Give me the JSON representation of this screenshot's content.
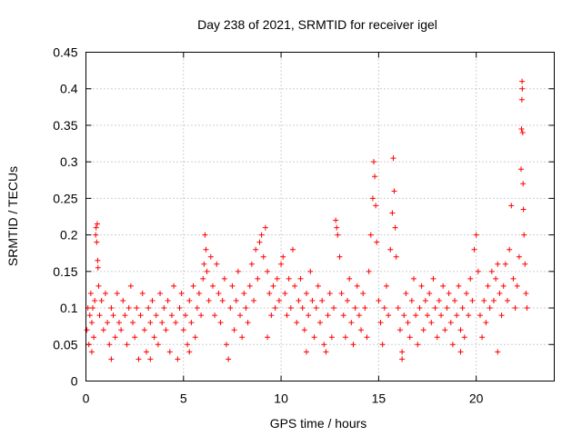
{
  "chart_data": {
    "type": "scatter",
    "title": "Day 238 of 2021, SRMTID for receiver igel",
    "xlabel": "GPS time / hours",
    "ylabel": "SRMTID / TECUs",
    "xlim": [
      0,
      24
    ],
    "ylim": [
      0,
      0.45
    ],
    "x_ticks": [
      0,
      5,
      10,
      15,
      20
    ],
    "x_tick_labels": [
      "0",
      "5",
      "10",
      "15",
      "20"
    ],
    "y_ticks": [
      0,
      0.05,
      0.1,
      0.15,
      0.2,
      0.25,
      0.3,
      0.35,
      0.4,
      0.45
    ],
    "y_tick_labels": [
      "0",
      "0.05",
      "0.1",
      "0.15",
      "0.2",
      "0.25",
      "0.3",
      "0.35",
      "0.4",
      "0.45"
    ],
    "grid": true,
    "marker": "+",
    "color": "#ff0000",
    "series": [
      {
        "name": "SRMTID",
        "points": [
          [
            0.05,
            0.07
          ],
          [
            0.1,
            0.1
          ],
          [
            0.15,
            0.05
          ],
          [
            0.2,
            0.09
          ],
          [
            0.25,
            0.12
          ],
          [
            0.3,
            0.08
          ],
          [
            0.35,
            0.1
          ],
          [
            0.4,
            0.06
          ],
          [
            0.45,
            0.11
          ],
          [
            0.5,
            0.2
          ],
          [
            0.52,
            0.21
          ],
          [
            0.55,
            0.19
          ],
          [
            0.58,
            0.215
          ],
          [
            0.6,
            0.165
          ],
          [
            0.62,
            0.155
          ],
          [
            0.65,
            0.13
          ],
          [
            0.7,
            0.09
          ],
          [
            0.8,
            0.11
          ],
          [
            0.9,
            0.07
          ],
          [
            1.0,
            0.12
          ],
          [
            1.1,
            0.08
          ],
          [
            1.2,
            0.05
          ],
          [
            1.3,
            0.1
          ],
          [
            1.4,
            0.09
          ],
          [
            1.5,
            0.06
          ],
          [
            1.6,
            0.12
          ],
          [
            1.7,
            0.08
          ],
          [
            1.8,
            0.07
          ],
          [
            1.9,
            0.11
          ],
          [
            2.0,
            0.09
          ],
          [
            2.1,
            0.05
          ],
          [
            2.2,
            0.1
          ],
          [
            2.3,
            0.13
          ],
          [
            2.4,
            0.08
          ],
          [
            2.5,
            0.06
          ],
          [
            2.6,
            0.1
          ],
          [
            2.7,
            0.03
          ],
          [
            2.8,
            0.09
          ],
          [
            2.9,
            0.12
          ],
          [
            3.0,
            0.07
          ],
          [
            3.1,
            0.04
          ],
          [
            3.2,
            0.1
          ],
          [
            3.3,
            0.08
          ],
          [
            3.4,
            0.11
          ],
          [
            3.5,
            0.06
          ],
          [
            3.6,
            0.09
          ],
          [
            3.7,
            0.05
          ],
          [
            3.8,
            0.12
          ],
          [
            3.9,
            0.08
          ],
          [
            4.0,
            0.1
          ],
          [
            4.1,
            0.07
          ],
          [
            4.2,
            0.11
          ],
          [
            4.3,
            0.04
          ],
          [
            4.4,
            0.09
          ],
          [
            4.5,
            0.13
          ],
          [
            4.6,
            0.08
          ],
          [
            4.7,
            0.03
          ],
          [
            4.8,
            0.1
          ],
          [
            4.9,
            0.12
          ],
          [
            5.0,
            0.07
          ],
          [
            5.1,
            0.09
          ],
          [
            5.2,
            0.05
          ],
          [
            5.3,
            0.11
          ],
          [
            5.4,
            0.08
          ],
          [
            5.5,
            0.13
          ],
          [
            5.6,
            0.06
          ],
          [
            5.7,
            0.1
          ],
          [
            5.8,
            0.12
          ],
          [
            5.9,
            0.09
          ],
          [
            6.0,
            0.14
          ],
          [
            6.05,
            0.16
          ],
          [
            6.1,
            0.2
          ],
          [
            6.15,
            0.18
          ],
          [
            6.2,
            0.15
          ],
          [
            6.3,
            0.11
          ],
          [
            6.4,
            0.17
          ],
          [
            6.5,
            0.13
          ],
          [
            6.6,
            0.09
          ],
          [
            6.7,
            0.16
          ],
          [
            6.8,
            0.12
          ],
          [
            6.9,
            0.08
          ],
          [
            7.0,
            0.11
          ],
          [
            7.1,
            0.14
          ],
          [
            7.2,
            0.05
          ],
          [
            7.3,
            0.03
          ],
          [
            7.4,
            0.1
          ],
          [
            7.5,
            0.13
          ],
          [
            7.6,
            0.07
          ],
          [
            7.7,
            0.11
          ],
          [
            7.8,
            0.15
          ],
          [
            7.9,
            0.09
          ],
          [
            8.0,
            0.06
          ],
          [
            8.1,
            0.12
          ],
          [
            8.2,
            0.1
          ],
          [
            8.3,
            0.08
          ],
          [
            8.4,
            0.13
          ],
          [
            8.5,
            0.16
          ],
          [
            8.6,
            0.11
          ],
          [
            8.7,
            0.18
          ],
          [
            8.8,
            0.14
          ],
          [
            8.9,
            0.19
          ],
          [
            9.0,
            0.2
          ],
          [
            9.1,
            0.17
          ],
          [
            9.2,
            0.21
          ],
          [
            9.3,
            0.15
          ],
          [
            9.4,
            0.12
          ],
          [
            9.5,
            0.09
          ],
          [
            9.6,
            0.13
          ],
          [
            9.7,
            0.1
          ],
          [
            9.8,
            0.14
          ],
          [
            9.9,
            0.11
          ],
          [
            10.0,
            0.16
          ],
          [
            10.1,
            0.17
          ],
          [
            10.2,
            0.12
          ],
          [
            10.3,
            0.09
          ],
          [
            10.4,
            0.14
          ],
          [
            10.5,
            0.1
          ],
          [
            10.6,
            0.18
          ],
          [
            10.7,
            0.13
          ],
          [
            10.8,
            0.08
          ],
          [
            10.9,
            0.11
          ],
          [
            11.0,
            0.14
          ],
          [
            11.1,
            0.1
          ],
          [
            11.2,
            0.07
          ],
          [
            11.3,
            0.12
          ],
          [
            11.4,
            0.09
          ],
          [
            11.5,
            0.15
          ],
          [
            11.6,
            0.11
          ],
          [
            11.7,
            0.06
          ],
          [
            11.8,
            0.1
          ],
          [
            11.9,
            0.13
          ],
          [
            12.0,
            0.08
          ],
          [
            12.1,
            0.11
          ],
          [
            12.2,
            0.05
          ],
          [
            12.3,
            0.04
          ],
          [
            12.4,
            0.09
          ],
          [
            12.5,
            0.12
          ],
          [
            12.6,
            0.06
          ],
          [
            12.7,
            0.1
          ],
          [
            12.8,
            0.22
          ],
          [
            12.85,
            0.21
          ],
          [
            12.9,
            0.2
          ],
          [
            13.0,
            0.17
          ],
          [
            13.1,
            0.12
          ],
          [
            13.2,
            0.09
          ],
          [
            13.3,
            0.06
          ],
          [
            13.4,
            0.11
          ],
          [
            13.5,
            0.14
          ],
          [
            13.6,
            0.08
          ],
          [
            13.7,
            0.05
          ],
          [
            13.8,
            0.1
          ],
          [
            13.9,
            0.13
          ],
          [
            14.0,
            0.09
          ],
          [
            14.1,
            0.07
          ],
          [
            14.2,
            0.12
          ],
          [
            14.3,
            0.1
          ],
          [
            14.4,
            0.06
          ],
          [
            14.5,
            0.15
          ],
          [
            14.6,
            0.2
          ],
          [
            14.7,
            0.25
          ],
          [
            14.75,
            0.3
          ],
          [
            14.8,
            0.28
          ],
          [
            14.85,
            0.24
          ],
          [
            14.9,
            0.19
          ],
          [
            15.0,
            0.11
          ],
          [
            15.1,
            0.08
          ],
          [
            15.2,
            0.05
          ],
          [
            15.3,
            0.1
          ],
          [
            15.4,
            0.13
          ],
          [
            15.5,
            0.09
          ],
          [
            15.6,
            0.18
          ],
          [
            15.7,
            0.23
          ],
          [
            15.75,
            0.305
          ],
          [
            15.8,
            0.26
          ],
          [
            15.85,
            0.21
          ],
          [
            15.9,
            0.17
          ],
          [
            16.0,
            0.1
          ],
          [
            16.1,
            0.07
          ],
          [
            16.2,
            0.04
          ],
          [
            16.3,
            0.09
          ],
          [
            16.4,
            0.12
          ],
          [
            16.5,
            0.08
          ],
          [
            16.6,
            0.06
          ],
          [
            16.7,
            0.11
          ],
          [
            16.8,
            0.14
          ],
          [
            16.9,
            0.09
          ],
          [
            17.0,
            0.05
          ],
          [
            17.1,
            0.1
          ],
          [
            17.2,
            0.13
          ],
          [
            17.3,
            0.07
          ],
          [
            17.4,
            0.11
          ],
          [
            17.5,
            0.09
          ],
          [
            17.6,
            0.12
          ],
          [
            17.7,
            0.08
          ],
          [
            17.8,
            0.14
          ],
          [
            17.9,
            0.1
          ],
          [
            18.0,
            0.06
          ],
          [
            18.1,
            0.11
          ],
          [
            18.2,
            0.09
          ],
          [
            18.3,
            0.13
          ],
          [
            18.4,
            0.07
          ],
          [
            18.5,
            0.1
          ],
          [
            18.6,
            0.12
          ],
          [
            18.7,
            0.08
          ],
          [
            18.8,
            0.05
          ],
          [
            18.9,
            0.11
          ],
          [
            19.0,
            0.09
          ],
          [
            19.1,
            0.13
          ],
          [
            19.2,
            0.07
          ],
          [
            19.3,
            0.1
          ],
          [
            19.4,
            0.06
          ],
          [
            19.5,
            0.12
          ],
          [
            19.6,
            0.09
          ],
          [
            19.7,
            0.14
          ],
          [
            19.8,
            0.11
          ],
          [
            19.9,
            0.18
          ],
          [
            20.0,
            0.2
          ],
          [
            20.1,
            0.15
          ],
          [
            20.2,
            0.09
          ],
          [
            20.3,
            0.06
          ],
          [
            20.4,
            0.11
          ],
          [
            20.5,
            0.08
          ],
          [
            20.6,
            0.13
          ],
          [
            20.7,
            0.1
          ],
          [
            20.8,
            0.15
          ],
          [
            20.9,
            0.11
          ],
          [
            21.0,
            0.14
          ],
          [
            21.1,
            0.16
          ],
          [
            21.2,
            0.12
          ],
          [
            21.3,
            0.09
          ],
          [
            21.4,
            0.13
          ],
          [
            21.5,
            0.16
          ],
          [
            21.6,
            0.11
          ],
          [
            21.7,
            0.18
          ],
          [
            21.8,
            0.24
          ],
          [
            21.9,
            0.14
          ],
          [
            22.0,
            0.1
          ],
          [
            22.1,
            0.13
          ],
          [
            22.2,
            0.17
          ],
          [
            22.3,
            0.29
          ],
          [
            22.32,
            0.345
          ],
          [
            22.34,
            0.385
          ],
          [
            22.35,
            0.41
          ],
          [
            22.36,
            0.4
          ],
          [
            22.38,
            0.34
          ],
          [
            22.4,
            0.27
          ],
          [
            22.42,
            0.235
          ],
          [
            22.45,
            0.2
          ],
          [
            22.5,
            0.16
          ],
          [
            22.55,
            0.12
          ],
          [
            22.6,
            0.1
          ],
          [
            0.3,
            0.04
          ],
          [
            1.3,
            0.03
          ],
          [
            3.3,
            0.03
          ],
          [
            5.3,
            0.04
          ],
          [
            9.3,
            0.06
          ],
          [
            11.3,
            0.04
          ],
          [
            16.2,
            0.03
          ],
          [
            19.2,
            0.04
          ],
          [
            21.1,
            0.04
          ]
        ]
      }
    ]
  }
}
